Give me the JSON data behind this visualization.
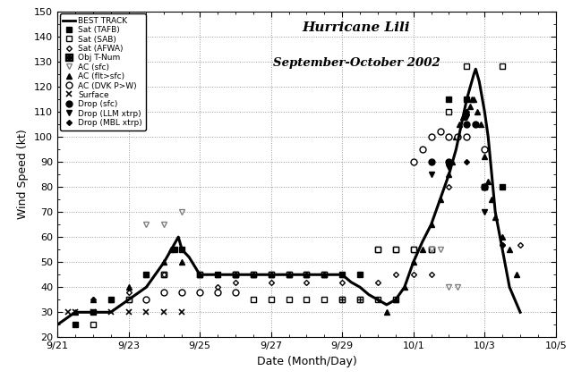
{
  "title_line1": "Hurricane Lili",
  "title_line2": "September-October 2002",
  "xlabel": "Date (Month/Day)",
  "ylabel": "Wind Speed (kt)",
  "ylim": [
    20,
    150
  ],
  "xlim_days": [
    0,
    14
  ],
  "xtick_labels": [
    "9/21",
    "9/23",
    "9/25",
    "9/27",
    "9/29",
    "10/1",
    "10/3",
    "10/5"
  ],
  "xtick_positions": [
    0,
    2,
    4,
    6,
    8,
    10,
    12,
    14
  ],
  "ytick_positions": [
    20,
    30,
    40,
    50,
    60,
    70,
    80,
    90,
    100,
    110,
    120,
    130,
    140,
    150
  ],
  "best_track": [
    [
      0.0,
      25
    ],
    [
      0.5,
      30
    ],
    [
      1.0,
      30
    ],
    [
      1.5,
      30
    ],
    [
      2.0,
      35
    ],
    [
      2.5,
      40
    ],
    [
      3.0,
      50
    ],
    [
      3.2,
      55
    ],
    [
      3.4,
      60
    ],
    [
      3.5,
      55
    ],
    [
      3.7,
      52
    ],
    [
      4.0,
      45
    ],
    [
      4.5,
      45
    ],
    [
      5.0,
      45
    ],
    [
      5.5,
      45
    ],
    [
      6.0,
      45
    ],
    [
      6.5,
      45
    ],
    [
      7.0,
      45
    ],
    [
      7.5,
      45
    ],
    [
      8.0,
      45
    ],
    [
      8.25,
      42
    ],
    [
      8.5,
      40
    ],
    [
      8.75,
      37
    ],
    [
      9.0,
      35
    ],
    [
      9.25,
      33
    ],
    [
      9.5,
      35
    ],
    [
      9.75,
      40
    ],
    [
      10.0,
      50
    ],
    [
      10.25,
      58
    ],
    [
      10.5,
      65
    ],
    [
      10.75,
      75
    ],
    [
      11.0,
      85
    ],
    [
      11.2,
      95
    ],
    [
      11.35,
      105
    ],
    [
      11.5,
      115
    ],
    [
      11.6,
      120
    ],
    [
      11.7,
      125
    ],
    [
      11.75,
      127
    ],
    [
      11.85,
      122
    ],
    [
      12.0,
      110
    ],
    [
      12.1,
      100
    ],
    [
      12.2,
      85
    ],
    [
      12.3,
      70
    ],
    [
      12.5,
      55
    ],
    [
      12.7,
      40
    ],
    [
      13.0,
      30
    ]
  ],
  "sat_tafb": [
    [
      0.5,
      25
    ],
    [
      1.0,
      30
    ],
    [
      1.5,
      35
    ],
    [
      2.0,
      35
    ],
    [
      2.5,
      45
    ],
    [
      3.0,
      45
    ],
    [
      3.3,
      55
    ],
    [
      3.5,
      55
    ],
    [
      4.0,
      45
    ],
    [
      4.5,
      45
    ],
    [
      5.0,
      45
    ],
    [
      5.5,
      45
    ],
    [
      6.0,
      45
    ],
    [
      6.5,
      45
    ],
    [
      7.0,
      45
    ],
    [
      7.5,
      45
    ],
    [
      8.0,
      45
    ],
    [
      8.5,
      45
    ],
    [
      9.0,
      55
    ],
    [
      9.5,
      55
    ],
    [
      10.0,
      55
    ],
    [
      10.5,
      55
    ],
    [
      11.0,
      115
    ],
    [
      11.5,
      115
    ],
    [
      12.0,
      80
    ],
    [
      12.5,
      80
    ]
  ],
  "sat_sab": [
    [
      1.0,
      25
    ],
    [
      2.0,
      35
    ],
    [
      3.0,
      45
    ],
    [
      4.0,
      45
    ],
    [
      5.0,
      45
    ],
    [
      5.5,
      35
    ],
    [
      6.0,
      35
    ],
    [
      6.5,
      35
    ],
    [
      7.0,
      35
    ],
    [
      7.5,
      35
    ],
    [
      8.0,
      35
    ],
    [
      8.5,
      35
    ],
    [
      9.0,
      55
    ],
    [
      9.5,
      55
    ],
    [
      10.0,
      55
    ],
    [
      10.5,
      55
    ],
    [
      11.0,
      110
    ],
    [
      11.5,
      128
    ],
    [
      12.0,
      80
    ],
    [
      12.5,
      128
    ]
  ],
  "sat_afwa": [
    [
      1.0,
      35
    ],
    [
      2.0,
      38
    ],
    [
      3.0,
      45
    ],
    [
      4.5,
      40
    ],
    [
      5.0,
      42
    ],
    [
      6.0,
      42
    ],
    [
      7.0,
      42
    ],
    [
      8.0,
      42
    ],
    [
      9.0,
      42
    ],
    [
      9.5,
      45
    ],
    [
      10.0,
      45
    ],
    [
      10.5,
      45
    ],
    [
      11.0,
      80
    ],
    [
      11.5,
      110
    ],
    [
      12.0,
      80
    ],
    [
      12.5,
      57
    ],
    [
      13.0,
      57
    ]
  ],
  "obj_tnum": [
    [
      5.0,
      45
    ],
    [
      5.5,
      45
    ],
    [
      6.0,
      45
    ],
    [
      6.5,
      45
    ],
    [
      7.0,
      45
    ],
    [
      7.5,
      45
    ],
    [
      8.0,
      35
    ],
    [
      8.5,
      35
    ],
    [
      9.0,
      35
    ],
    [
      9.5,
      35
    ]
  ],
  "ac_sfc": [
    [
      2.5,
      65
    ],
    [
      3.0,
      65
    ],
    [
      3.5,
      70
    ],
    [
      10.5,
      55
    ],
    [
      10.75,
      55
    ],
    [
      11.0,
      40
    ],
    [
      11.25,
      40
    ]
  ],
  "ac_flt_sfc": [
    [
      0.5,
      30
    ],
    [
      1.0,
      35
    ],
    [
      1.5,
      35
    ],
    [
      2.0,
      40
    ],
    [
      2.5,
      45
    ],
    [
      3.0,
      50
    ],
    [
      3.2,
      55
    ],
    [
      3.5,
      50
    ],
    [
      4.0,
      45
    ],
    [
      4.5,
      45
    ],
    [
      5.0,
      45
    ],
    [
      5.5,
      45
    ],
    [
      6.0,
      45
    ],
    [
      6.5,
      45
    ],
    [
      7.0,
      45
    ],
    [
      7.5,
      45
    ],
    [
      8.0,
      45
    ],
    [
      9.25,
      30
    ],
    [
      9.5,
      35
    ],
    [
      9.75,
      40
    ],
    [
      10.0,
      50
    ],
    [
      10.25,
      55
    ],
    [
      10.5,
      65
    ],
    [
      10.75,
      75
    ],
    [
      11.0,
      85
    ],
    [
      11.1,
      90
    ],
    [
      11.2,
      100
    ],
    [
      11.3,
      105
    ],
    [
      11.4,
      108
    ],
    [
      11.5,
      110
    ],
    [
      11.6,
      112
    ],
    [
      11.65,
      115
    ],
    [
      11.7,
      115
    ],
    [
      11.8,
      110
    ],
    [
      11.9,
      105
    ],
    [
      12.0,
      92
    ],
    [
      12.1,
      82
    ],
    [
      12.2,
      75
    ],
    [
      12.3,
      68
    ],
    [
      12.5,
      60
    ],
    [
      12.7,
      55
    ],
    [
      12.9,
      45
    ]
  ],
  "ac_dvk": [
    [
      2.5,
      35
    ],
    [
      3.0,
      38
    ],
    [
      3.5,
      38
    ],
    [
      4.0,
      38
    ],
    [
      4.5,
      38
    ],
    [
      5.0,
      38
    ],
    [
      10.0,
      90
    ],
    [
      10.25,
      95
    ],
    [
      10.5,
      100
    ],
    [
      10.75,
      102
    ],
    [
      11.0,
      100
    ],
    [
      11.25,
      100
    ],
    [
      11.5,
      100
    ],
    [
      12.0,
      95
    ]
  ],
  "surface": [
    [
      0.3,
      30
    ],
    [
      0.5,
      30
    ],
    [
      1.0,
      30
    ],
    [
      1.5,
      30
    ],
    [
      2.0,
      30
    ],
    [
      2.5,
      30
    ],
    [
      3.0,
      30
    ],
    [
      3.5,
      30
    ]
  ],
  "drop_sfc": [
    [
      10.5,
      90
    ],
    [
      11.0,
      90
    ],
    [
      11.5,
      105
    ],
    [
      11.75,
      105
    ],
    [
      12.0,
      80
    ]
  ],
  "drop_llm": [
    [
      10.5,
      85
    ],
    [
      11.0,
      88
    ],
    [
      11.5,
      108
    ],
    [
      12.0,
      70
    ]
  ],
  "drop_mbl": [
    [
      11.0,
      90
    ],
    [
      11.5,
      90
    ],
    [
      12.0,
      80
    ],
    [
      12.5,
      57
    ]
  ]
}
